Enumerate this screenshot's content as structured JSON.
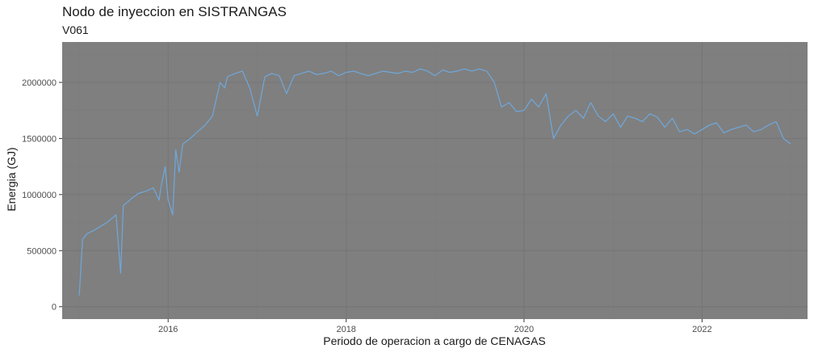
{
  "chart_data": {
    "type": "line",
    "title": "Nodo de inyeccion en SISTRANGAS",
    "subtitle": "V061",
    "xlabel": "Periodo de operacion a cargo de CENAGAS",
    "ylabel": "Energia (GJ)",
    "xlim": [
      "2014-10-23",
      "2023-03-10"
    ],
    "ylim": [
      -110000,
      2360000
    ],
    "xticks": [
      "2016-01-01",
      "2018-01-01",
      "2020-01-01",
      "2022-01-01"
    ],
    "xtick_labels": [
      "2016",
      "2018",
      "2020",
      "2022"
    ],
    "yticks": [
      0,
      500000,
      1000000,
      1500000,
      2000000
    ],
    "ytick_labels": [
      "0",
      "500000",
      "1000000",
      "1500000",
      "2000000"
    ],
    "grid": true,
    "colors": {
      "panel": "#7f7f7f",
      "grid_major": "#767676",
      "grid_minor": "#7b7b7b",
      "line": "#6fa8dc"
    },
    "series": [
      {
        "x": [
          "2015-01-01",
          "2015-01-15",
          "2015-02-01",
          "2015-03-01",
          "2015-04-01",
          "2015-05-01",
          "2015-06-01",
          "2015-06-20",
          "2015-07-01",
          "2015-08-01",
          "2015-09-01",
          "2015-10-01",
          "2015-11-01",
          "2015-11-25",
          "2015-12-01",
          "2015-12-20",
          "2016-01-01",
          "2016-01-20",
          "2016-02-01",
          "2016-02-15",
          "2016-03-01",
          "2016-04-01",
          "2016-05-01",
          "2016-06-01",
          "2016-07-01",
          "2016-08-01",
          "2016-08-20",
          "2016-09-01",
          "2016-10-01",
          "2016-11-01",
          "2016-12-01",
          "2017-01-01",
          "2017-02-01",
          "2017-03-01",
          "2017-04-01",
          "2017-05-01",
          "2017-06-01",
          "2017-07-01",
          "2017-08-01",
          "2017-09-01",
          "2017-10-01",
          "2017-11-01",
          "2017-12-01",
          "2018-01-01",
          "2018-02-01",
          "2018-03-01",
          "2018-04-01",
          "2018-05-01",
          "2018-06-01",
          "2018-07-01",
          "2018-08-01",
          "2018-09-01",
          "2018-10-01",
          "2018-11-01",
          "2018-12-01",
          "2019-01-01",
          "2019-02-01",
          "2019-03-01",
          "2019-04-01",
          "2019-05-01",
          "2019-06-01",
          "2019-07-01",
          "2019-08-01",
          "2019-09-01",
          "2019-10-01",
          "2019-11-01",
          "2019-12-01",
          "2020-01-01",
          "2020-02-01",
          "2020-03-01",
          "2020-04-01",
          "2020-05-01",
          "2020-06-01",
          "2020-07-01",
          "2020-08-01",
          "2020-09-01",
          "2020-10-01",
          "2020-11-01",
          "2020-12-01",
          "2021-01-01",
          "2021-02-01",
          "2021-03-01",
          "2021-04-01",
          "2021-05-01",
          "2021-06-01",
          "2021-07-01",
          "2021-08-01",
          "2021-09-01",
          "2021-10-01",
          "2021-11-01",
          "2021-12-01",
          "2022-01-01",
          "2022-02-01",
          "2022-03-01",
          "2022-04-01",
          "2022-05-01",
          "2022-06-01",
          "2022-07-01",
          "2022-08-01",
          "2022-09-01",
          "2022-10-01",
          "2022-11-01",
          "2022-12-01",
          "2022-12-31"
        ],
        "values": [
          100000,
          600000,
          650000,
          680000,
          720000,
          760000,
          820000,
          300000,
          900000,
          960000,
          1010000,
          1030000,
          1060000,
          950000,
          1050000,
          1250000,
          950000,
          820000,
          1400000,
          1200000,
          1450000,
          1500000,
          1560000,
          1620000,
          1700000,
          2000000,
          1950000,
          2050000,
          2080000,
          2100000,
          1950000,
          1700000,
          2050000,
          2080000,
          2060000,
          1900000,
          2060000,
          2080000,
          2100000,
          2070000,
          2080000,
          2100000,
          2060000,
          2090000,
          2100000,
          2080000,
          2060000,
          2080000,
          2100000,
          2090000,
          2080000,
          2100000,
          2090000,
          2120000,
          2100000,
          2060000,
          2110000,
          2090000,
          2100000,
          2120000,
          2100000,
          2120000,
          2100000,
          2000000,
          1780000,
          1820000,
          1740000,
          1750000,
          1850000,
          1780000,
          1900000,
          1500000,
          1620000,
          1700000,
          1750000,
          1680000,
          1820000,
          1700000,
          1650000,
          1720000,
          1600000,
          1700000,
          1680000,
          1650000,
          1720000,
          1690000,
          1600000,
          1680000,
          1560000,
          1580000,
          1540000,
          1580000,
          1620000,
          1640000,
          1550000,
          1580000,
          1600000,
          1620000,
          1560000,
          1580000,
          1620000,
          1650000,
          1500000,
          1450000
        ]
      }
    ]
  }
}
